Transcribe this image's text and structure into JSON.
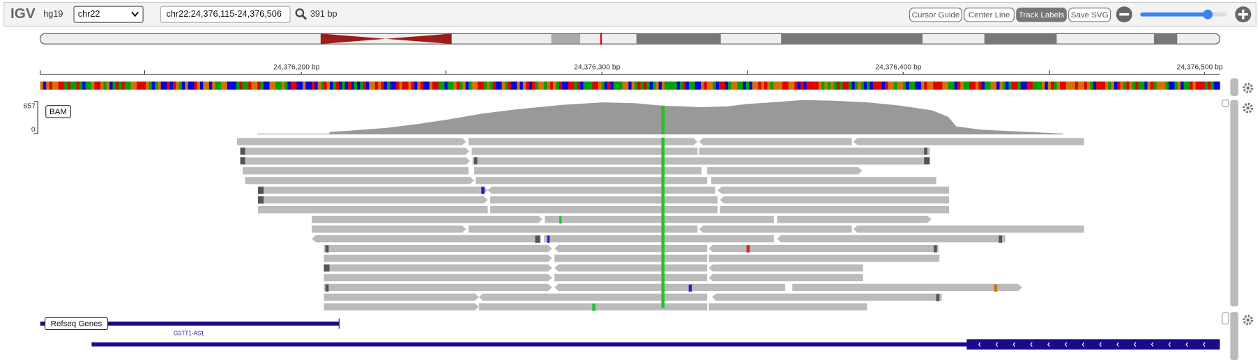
{
  "toolbar": {
    "app": "IGV",
    "genome": "hg19",
    "chromosome": "chr22",
    "locus": "chr22:24,376,115-24,376,506",
    "width": "391 bp",
    "buttons": [
      "Cursor Guide",
      "Center Line",
      "Track Labels",
      "Save SVG"
    ]
  },
  "ruler": {
    "ticks": [
      "24,376,200 bp",
      "24,376,300 bp",
      "24,376,400 bp",
      "24,376,500 bp"
    ]
  },
  "tracks": {
    "bam": {
      "label": "BAM",
      "range_max": 657,
      "range_min": 0
    },
    "refseq": {
      "label": "Refseq Genes",
      "genes": [
        "GSTT1-AS1"
      ]
    }
  }
}
